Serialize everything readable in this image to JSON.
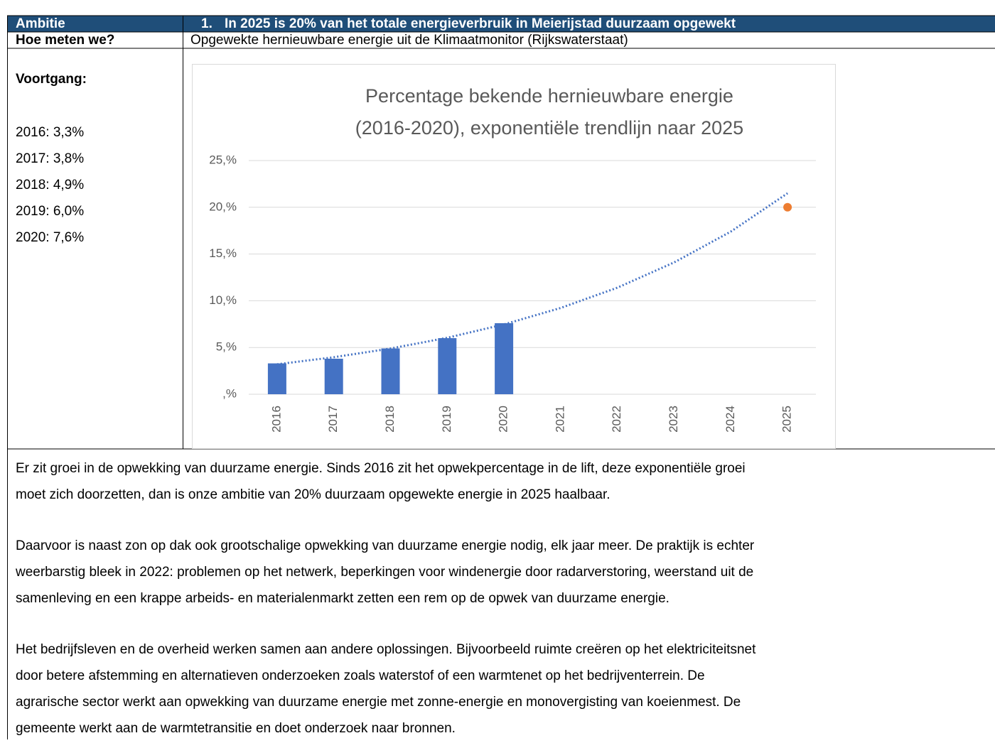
{
  "table": {
    "header": {
      "label": "Ambitie",
      "number": "1.",
      "text": "In 2025 is 20% van het totale energieverbruik in Meierijstad duurzaam opgewekt"
    },
    "measure": {
      "label": "Hoe meten we?",
      "text": "Opgewekte hernieuwbare energie uit de Klimaatmonitor (Rijkswaterstaat)"
    },
    "progress": {
      "label": "Voortgang:",
      "items": [
        "2016: 3,3%",
        "2017: 3,8%",
        "2018: 4,9%",
        "2019: 6,0%",
        "2020: 7,6%"
      ]
    },
    "paragraphs": [
      [
        "Er zit groei in de opwekking van duurzame energie. Sinds 2016 zit het opwekpercentage in de lift, deze exponentiële groei",
        "moet zich doorzetten, dan is onze ambitie van 20% duurzaam opgewekte energie in 2025 haalbaar."
      ],
      [
        "Daarvoor is naast zon op dak ook grootschalige opwekking van duurzame energie nodig, elk jaar meer. De praktijk is echter",
        "weerbarstig bleek in 2022: problemen op het netwerk, beperkingen voor windenergie door radarverstoring, weerstand uit de",
        "samenleving en een krappe arbeids- en materialenmarkt zetten een rem op de opwek van duurzame energie."
      ],
      [
        "Het bedrijfsleven en de overheid werken samen aan andere oplossingen. Bijvoorbeeld ruimte creëren op het elektriciteitsnet",
        "door betere afstemming en alternatieven onderzoeken zoals waterstof of een warmtenet op het bedrijventerrein. De",
        "agrarische sector werkt aan opwekking van duurzame energie met zonne-energie en monovergisting van koeienmest. De",
        "gemeente werkt aan de warmtetransitie en doet onderzoek naar bronnen."
      ]
    ]
  },
  "chart_data": {
    "type": "bar",
    "title": [
      "Percentage bekende hernieuwbare energie",
      "(2016-2020), exponentiële trendlijn naar 2025"
    ],
    "categories": [
      "2016",
      "2017",
      "2018",
      "2019",
      "2020",
      "2021",
      "2022",
      "2023",
      "2024",
      "2025"
    ],
    "series": [
      {
        "type": "bar",
        "color": "#4472c4",
        "values": [
          3.3,
          3.8,
          4.9,
          6.0,
          7.6,
          null,
          null,
          null,
          null,
          null
        ]
      },
      {
        "type": "line",
        "style": "dotted",
        "color": "#4472c4",
        "values": [
          3.2,
          3.96,
          4.89,
          6.04,
          7.47,
          9.23,
          11.4,
          14.1,
          17.4,
          21.5
        ]
      },
      {
        "type": "scatter",
        "color": "#ed7d31",
        "values": [
          null,
          null,
          null,
          null,
          null,
          null,
          null,
          null,
          null,
          20
        ]
      }
    ],
    "ylim": [
      0,
      25
    ],
    "yticks": [
      {
        "value": 0,
        "label": ",%"
      },
      {
        "value": 5,
        "label": "5,%"
      },
      {
        "value": 10,
        "label": "10,%"
      },
      {
        "value": 15,
        "label": "15,%"
      },
      {
        "value": 20,
        "label": "20,%"
      },
      {
        "value": 25,
        "label": "25,%"
      }
    ],
    "grid": true
  }
}
